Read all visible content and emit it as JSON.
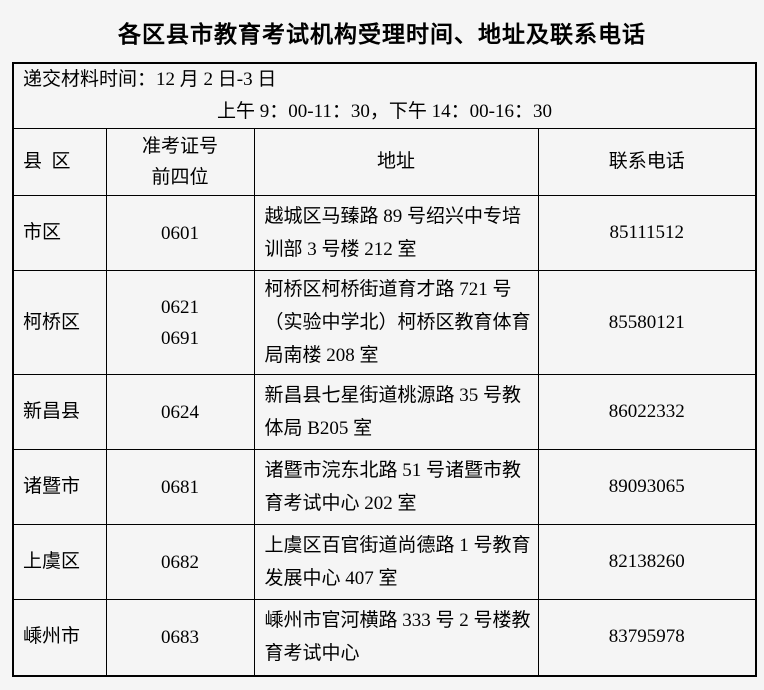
{
  "page": {
    "title": "各区县市教育考试机构受理时间、地址及联系电话"
  },
  "notice": {
    "line1": "递交材料时间：12 月 2 日-3 日",
    "line2": "上午 9：00-11：30，下午 14：00-16：30"
  },
  "headers": {
    "district": "县  区",
    "code_line1": "准考证号",
    "code_line2": "前四位",
    "address": "地址",
    "phone": "联系电话"
  },
  "rows": [
    {
      "district": "市区",
      "code1": "0601",
      "code2": "",
      "address": "越城区马臻路 89 号绍兴中专培训部 3 号楼 212 室",
      "phone": "85111512"
    },
    {
      "district": "柯桥区",
      "code1": "0621",
      "code2": "0691",
      "address": "柯桥区柯桥街道育才路 721 号（实验中学北）柯桥区教育体育局南楼 208 室",
      "phone": "85580121"
    },
    {
      "district": "新昌县",
      "code1": "0624",
      "code2": "",
      "address": "新昌县七星街道桃源路 35 号教体局 B205 室",
      "phone": "86022332"
    },
    {
      "district": "诸暨市",
      "code1": "0681",
      "code2": "",
      "address": "诸暨市浣东北路 51 号诸暨市教育考试中心 202 室",
      "phone": "89093065"
    },
    {
      "district": "上虞区",
      "code1": "0682",
      "code2": "",
      "address": "上虞区百官街道尚德路 1 号教育发展中心 407 室",
      "phone": "82138260"
    },
    {
      "district": "嵊州市",
      "code1": "0683",
      "code2": "",
      "address": "嵊州市官河横路 333 号 2 号楼教育考试中心",
      "phone": "83795978"
    }
  ],
  "colors": {
    "background": "#f5f5f5",
    "border": "#000000",
    "text": "#000000"
  }
}
